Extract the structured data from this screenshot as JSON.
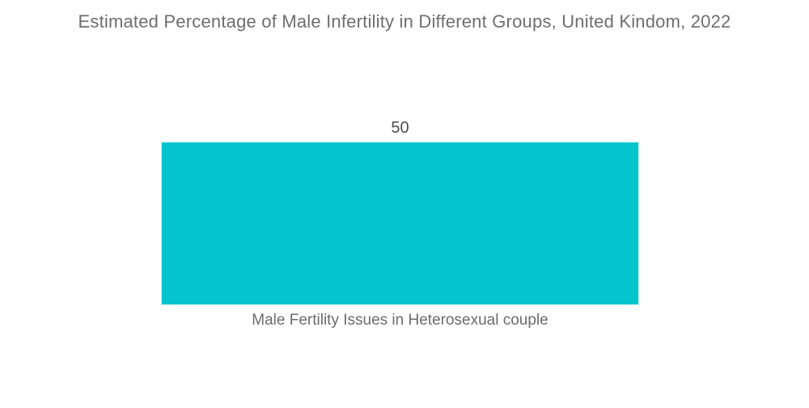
{
  "title": "Estimated Percentage of Male Infertility in Different Groups, United Kindom, 2022",
  "chart_data": {
    "type": "bar",
    "orientation": "vertical",
    "title": "Estimated Percentage of Male Infertility in Different Groups, United Kindom, 2022",
    "categories": [
      "Male Fertility Issues in Heterosexual couple"
    ],
    "values": [
      50
    ],
    "value_labels": [
      "50"
    ],
    "xlabel": "",
    "ylabel": "",
    "ylim": [
      0,
      50
    ],
    "grid": false,
    "legend": false,
    "axes_visible": false,
    "bar_color": "#04C5CD",
    "background_color": "#ffffff",
    "title_color": "#6e6e6e",
    "value_label_color": "#4d4d4d",
    "category_label_color": "#6b6b6b"
  }
}
